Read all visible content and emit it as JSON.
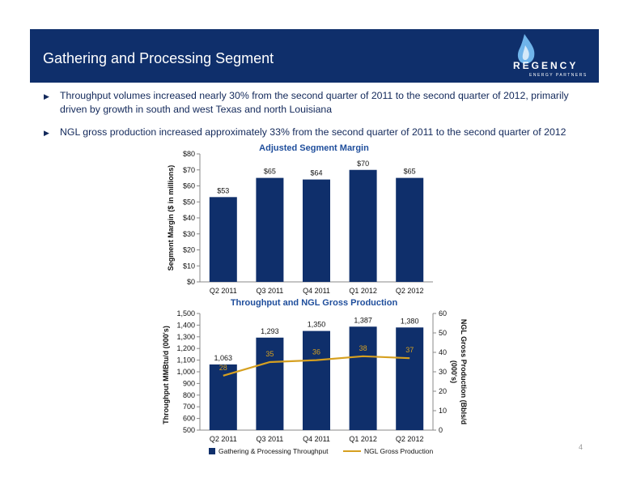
{
  "header": {
    "title": "Gathering and Processing Segment",
    "logo_word": "REGENCY",
    "logo_sub": "ENERGY PARTNERS"
  },
  "bullets": [
    "Throughput volumes increased nearly 30% from the second quarter of 2011 to the second quarter of 2012, primarily driven by growth in south and west Texas and north Louisiana",
    "NGL gross production increased approximately 33% from the second quarter of 2011 to the second quarter of 2012"
  ],
  "page_number": "4",
  "colors": {
    "header": "#0f2f6b",
    "bar": "#0f2f6b",
    "line": "#d6a020",
    "title": "#1f4e9c"
  },
  "chart_data": [
    {
      "type": "bar",
      "title": "Adjusted Segment Margin",
      "ylabel": "Segment Margin ($ in millions)",
      "categories": [
        "Q2 2011",
        "Q3 2011",
        "Q4 2011",
        "Q1 2012",
        "Q2 2012"
      ],
      "values": [
        53,
        65,
        64,
        70,
        65
      ],
      "data_labels": [
        "$53",
        "$65",
        "$64",
        "$70",
        "$65"
      ],
      "ylim": [
        0,
        80
      ],
      "ytick_labels": [
        "$0",
        "$10",
        "$20",
        "$30",
        "$40",
        "$50",
        "$60",
        "$70",
        "$80"
      ],
      "grid": false
    },
    {
      "type": "bar",
      "title": "Throughput and NGL Gross Production",
      "ylabel": "Throughput MMBtu/d (000's)",
      "y2label": "NGL Gross Production (Bbls/d (000's)",
      "categories": [
        "Q2 2011",
        "Q3 2011",
        "Q4 2011",
        "Q1 2012",
        "Q2 2012"
      ],
      "series": [
        {
          "name": "Gathering & Processing Throughput",
          "type": "bar",
          "axis": "left",
          "values": [
            1063,
            1293,
            1350,
            1387,
            1380
          ],
          "data_labels": [
            "1,063",
            "1,293",
            "1,350",
            "1,387",
            "1,380"
          ]
        },
        {
          "name": "NGL Gross Production",
          "type": "line",
          "axis": "right",
          "values": [
            28,
            35,
            36,
            38,
            37
          ],
          "data_labels": [
            "28",
            "35",
            "36",
            "38",
            "37"
          ]
        }
      ],
      "ylim": [
        500,
        1500
      ],
      "ytick_labels": [
        "500",
        "600",
        "700",
        "800",
        "900",
        "1,000",
        "1,100",
        "1,200",
        "1,300",
        "1,400",
        "1,500"
      ],
      "y2lim": [
        0,
        60
      ],
      "y2tick_labels": [
        "0",
        "10",
        "20",
        "30",
        "40",
        "50",
        "60"
      ],
      "legend": "bottom",
      "grid": false
    }
  ]
}
